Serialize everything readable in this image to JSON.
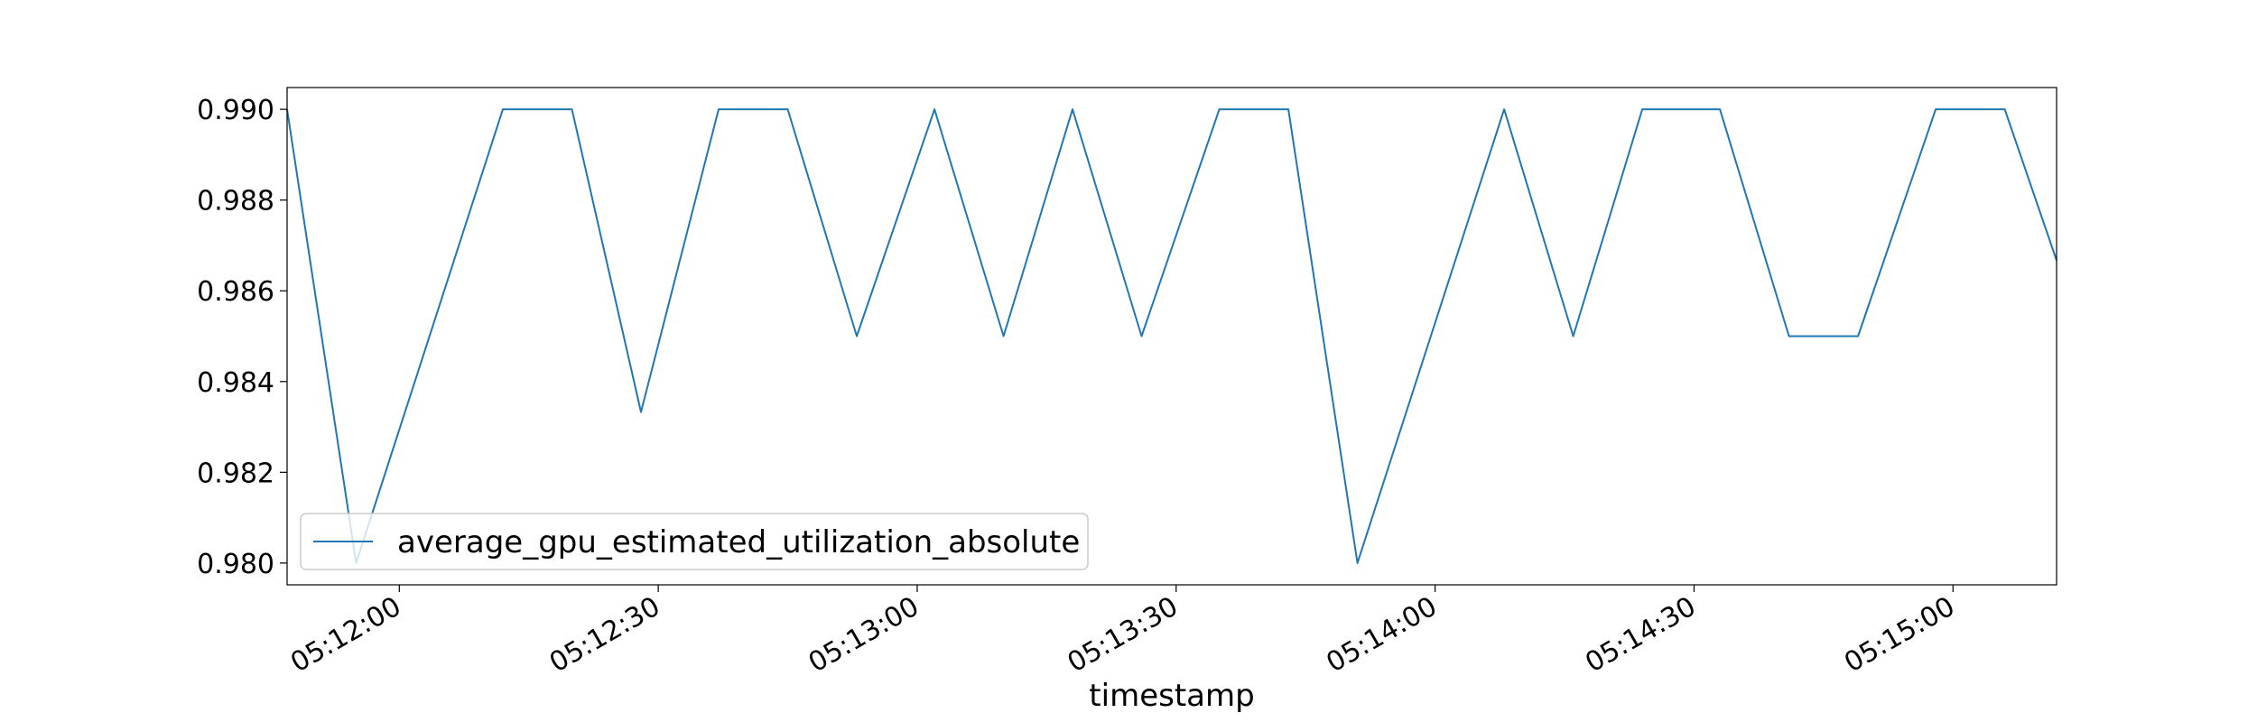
{
  "chart_data": {
    "type": "line",
    "title": "",
    "xlabel": "timestamp",
    "ylabel": "",
    "x_format": "HH:MM:SS",
    "xlim": [
      "05:11:47",
      "05:15:12"
    ],
    "ylim": [
      0.97952,
      0.99048
    ],
    "x_ticks": [
      "05:12:00",
      "05:12:30",
      "05:13:00",
      "05:13:30",
      "05:14:00",
      "05:14:30",
      "05:15:00"
    ],
    "y_ticks": [
      "0.990",
      "0.988",
      "0.986",
      "0.984",
      "0.982",
      "0.980"
    ],
    "grid": false,
    "legend": {
      "placement": "lower-left",
      "entries": [
        "average_gpu_estimated_utilization_absolute"
      ]
    },
    "series": [
      {
        "name": "average_gpu_estimated_utilization_absolute",
        "color": "#1f77b4",
        "x": [
          "05:11:47",
          "05:11:55",
          "05:12:12",
          "05:12:20",
          "05:12:28",
          "05:12:37",
          "05:12:45",
          "05:12:53",
          "05:13:02",
          "05:13:10",
          "05:13:18",
          "05:13:26",
          "05:13:35",
          "05:13:43",
          "05:13:51",
          "05:14:08",
          "05:14:16",
          "05:14:24",
          "05:14:33",
          "05:14:41",
          "05:14:49",
          "05:14:58",
          "05:15:06",
          "05:15:12"
        ],
        "values": [
          0.99,
          0.98,
          0.99,
          0.99,
          0.98333,
          0.99,
          0.99,
          0.985,
          0.99,
          0.985,
          0.99,
          0.985,
          0.99,
          0.99,
          0.98,
          0.99,
          0.985,
          0.99,
          0.99,
          0.985,
          0.985,
          0.99,
          0.99,
          0.98667
        ]
      }
    ]
  }
}
